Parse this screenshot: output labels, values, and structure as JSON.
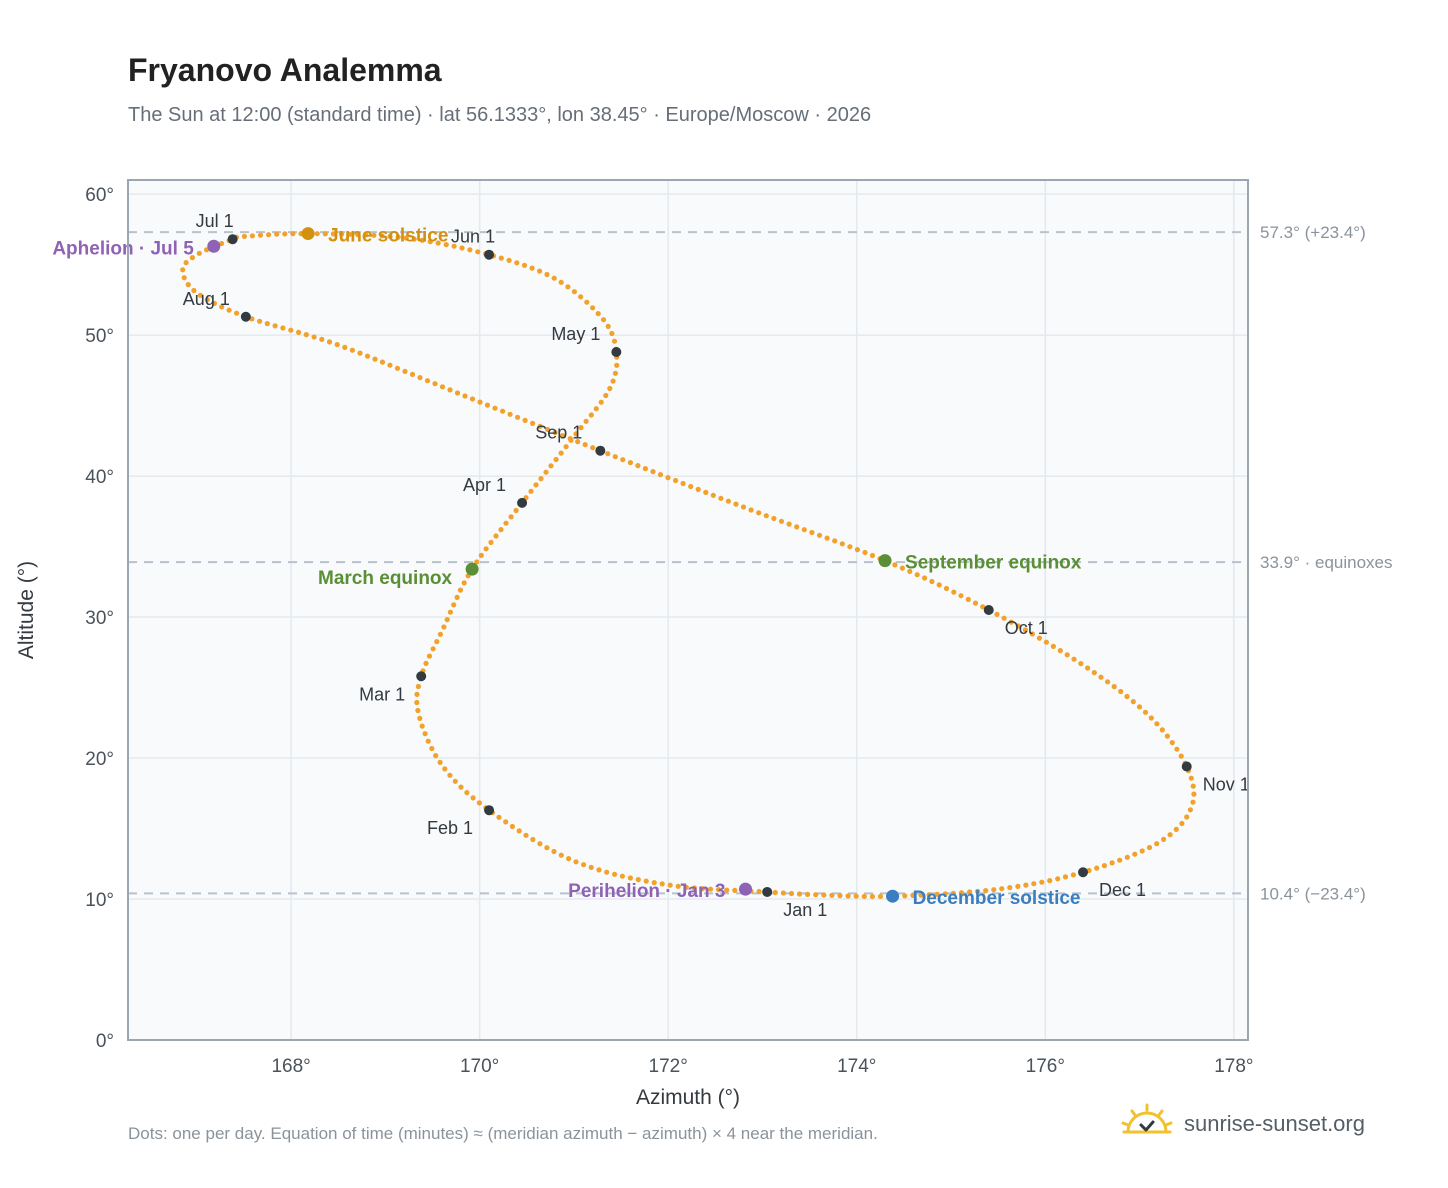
{
  "title": "Fryanovo Analemma",
  "subtitle": "The Sun at 12:00 (standard time) · lat 56.1333°, lon 38.45° · Europe/Moscow · 2026",
  "footnote": "Dots: one per day. Equation of time (minutes) ≈ (meridian azimuth − azimuth) × 4 near the meridian.",
  "brand": {
    "text": "sunrise-sunset.org",
    "icon": "sun-logo-icon",
    "color": "#f2c12e"
  },
  "colors": {
    "curve": "#f2a12a",
    "month_marker": "#333a40",
    "solstice_june": "#d4900f",
    "solstice_december": "#3a7ebf",
    "equinox": "#5a8f35",
    "apsis": "#8f62b5",
    "reference_line": "#b8c2cc",
    "grid": "#e4e9ee",
    "plot_bg": "#f8fafc",
    "axis": "#9aa6b2"
  },
  "chart_data": {
    "type": "scatter",
    "xlabel": "Azimuth (°)",
    "ylabel": "Altitude (°)",
    "xlim": [
      166.27,
      178.15
    ],
    "ylim": [
      0,
      61
    ],
    "xticks": [
      168,
      170,
      172,
      174,
      176,
      178
    ],
    "yticks": [
      0,
      10,
      20,
      30,
      40,
      50,
      60
    ],
    "grid": true,
    "reference_lines": [
      {
        "y": 57.3,
        "label": "57.3° (+23.4°)"
      },
      {
        "y": 33.9,
        "label": "33.9° · equinoxes"
      },
      {
        "y": 10.4,
        "label": "10.4° (−23.4°)"
      }
    ],
    "month_markers": [
      {
        "label": "Jan 1",
        "az": 173.05,
        "alt": 10.5
      },
      {
        "label": "Feb 1",
        "az": 170.1,
        "alt": 16.3
      },
      {
        "label": "Mar 1",
        "az": 169.38,
        "alt": 25.8
      },
      {
        "label": "Apr 1",
        "az": 170.45,
        "alt": 38.1
      },
      {
        "label": "May 1",
        "az": 171.45,
        "alt": 48.8
      },
      {
        "label": "Jun 1",
        "az": 170.1,
        "alt": 55.7
      },
      {
        "label": "Jul 1",
        "az": 167.38,
        "alt": 56.8
      },
      {
        "label": "Aug 1",
        "az": 167.52,
        "alt": 51.3
      },
      {
        "label": "Sep 1",
        "az": 171.28,
        "alt": 41.8
      },
      {
        "label": "Oct 1",
        "az": 175.4,
        "alt": 30.5
      },
      {
        "label": "Nov 1",
        "az": 177.5,
        "alt": 19.4
      },
      {
        "label": "Dec 1",
        "az": 176.4,
        "alt": 11.9
      }
    ],
    "events": [
      {
        "label": "June solstice",
        "az": 168.18,
        "alt": 57.2,
        "kind": "solstice_june"
      },
      {
        "label": "December solstice",
        "az": 174.38,
        "alt": 10.2,
        "kind": "solstice_december"
      },
      {
        "label": "March equinox",
        "az": 169.92,
        "alt": 33.4,
        "kind": "equinox"
      },
      {
        "label": "September equinox",
        "az": 174.3,
        "alt": 34.0,
        "kind": "equinox"
      },
      {
        "label": "Aphelion · Jul 5",
        "az": 167.18,
        "alt": 56.3,
        "kind": "apsis"
      },
      {
        "label": "Perihelion · Jan 3",
        "az": 172.82,
        "alt": 10.7,
        "kind": "apsis"
      }
    ],
    "curve_points": [
      [
        173.05,
        10.5
      ],
      [
        172.0,
        11.0
      ],
      [
        171.0,
        12.7
      ],
      [
        170.1,
        16.3
      ],
      [
        169.6,
        19.5
      ],
      [
        169.35,
        23.2
      ],
      [
        169.38,
        25.8
      ],
      [
        169.6,
        29.0
      ],
      [
        169.92,
        33.4
      ],
      [
        170.45,
        38.1
      ],
      [
        171.0,
        42.8
      ],
      [
        171.38,
        46.2
      ],
      [
        171.45,
        48.8
      ],
      [
        171.3,
        51.2
      ],
      [
        170.8,
        54.0
      ],
      [
        170.1,
        55.7
      ],
      [
        169.2,
        56.9
      ],
      [
        168.18,
        57.2
      ],
      [
        167.5,
        57.0
      ],
      [
        167.38,
        56.8
      ],
      [
        167.0,
        55.7
      ],
      [
        166.85,
        54.6
      ],
      [
        167.0,
        53.0
      ],
      [
        167.52,
        51.3
      ],
      [
        168.5,
        49.3
      ],
      [
        169.8,
        45.8
      ],
      [
        171.28,
        41.8
      ],
      [
        172.8,
        37.8
      ],
      [
        174.3,
        34.0
      ],
      [
        175.4,
        30.5
      ],
      [
        176.4,
        26.6
      ],
      [
        177.1,
        23.0
      ],
      [
        177.5,
        19.4
      ],
      [
        177.55,
        16.5
      ],
      [
        177.2,
        14.0
      ],
      [
        176.4,
        11.9
      ],
      [
        175.5,
        10.7
      ],
      [
        174.38,
        10.2
      ],
      [
        173.6,
        10.3
      ],
      [
        173.05,
        10.5
      ]
    ]
  }
}
